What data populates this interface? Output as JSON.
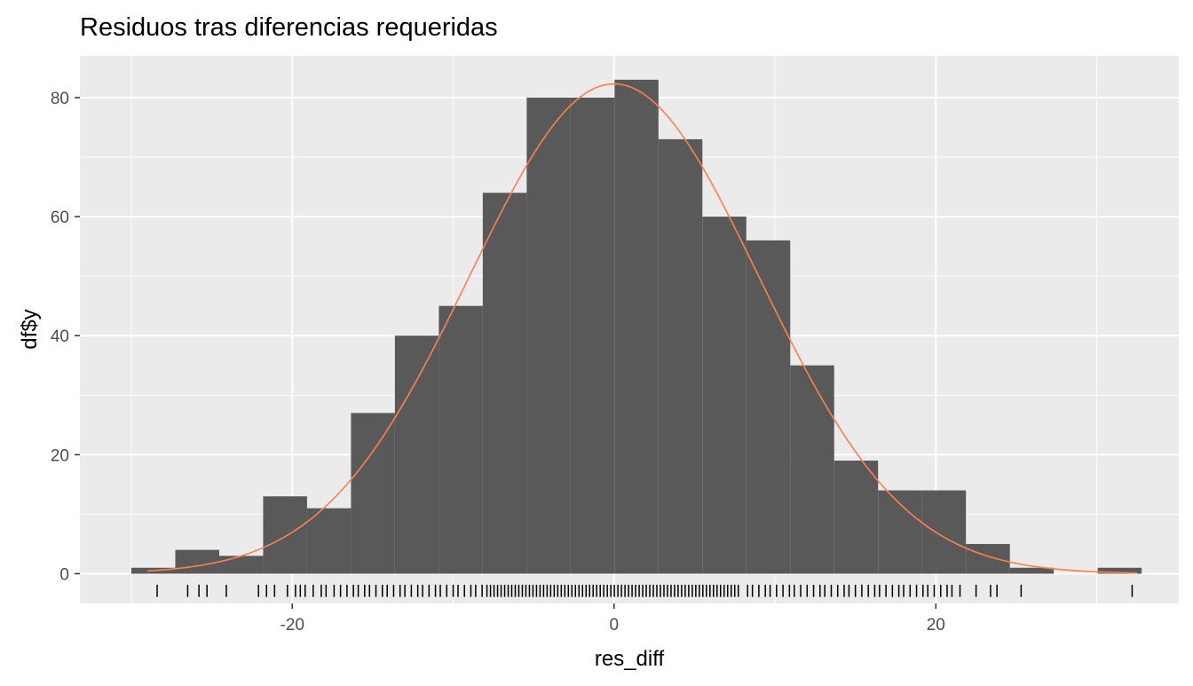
{
  "chart_data": {
    "type": "bar",
    "title": "Residuos tras diferencias requeridas",
    "xlabel": "res_diff",
    "ylabel": "df$y",
    "xlim": [
      -33.2,
      35.1
    ],
    "ylim": [
      -5.0,
      87.0
    ],
    "x_ticks": [
      -20,
      0,
      20
    ],
    "x_tick_labels": [
      "-20",
      "0",
      "20"
    ],
    "y_ticks": [
      0,
      20,
      40,
      60,
      80
    ],
    "y_tick_labels": [
      "0",
      "20",
      "40",
      "60",
      "80"
    ],
    "grid": true,
    "legend": "none",
    "bin_width": 2.73,
    "bins": [
      {
        "x_min": -30.0,
        "x_max": -27.27,
        "count": 1
      },
      {
        "x_min": -27.27,
        "x_max": -24.54,
        "count": 4
      },
      {
        "x_min": -24.54,
        "x_max": -21.81,
        "count": 3
      },
      {
        "x_min": -21.81,
        "x_max": -19.08,
        "count": 13
      },
      {
        "x_min": -19.08,
        "x_max": -16.35,
        "count": 11
      },
      {
        "x_min": -16.35,
        "x_max": -13.62,
        "count": 27
      },
      {
        "x_min": -13.62,
        "x_max": -10.89,
        "count": 40
      },
      {
        "x_min": -10.89,
        "x_max": -8.16,
        "count": 45
      },
      {
        "x_min": -8.16,
        "x_max": -5.43,
        "count": 64
      },
      {
        "x_min": -5.43,
        "x_max": -2.7,
        "count": 80
      },
      {
        "x_min": -2.7,
        "x_max": 0.03,
        "count": 80
      },
      {
        "x_min": 0.03,
        "x_max": 2.76,
        "count": 83
      },
      {
        "x_min": 2.76,
        "x_max": 5.49,
        "count": 73
      },
      {
        "x_min": 5.49,
        "x_max": 8.22,
        "count": 60
      },
      {
        "x_min": 8.22,
        "x_max": 10.95,
        "count": 56
      },
      {
        "x_min": 10.95,
        "x_max": 13.68,
        "count": 35
      },
      {
        "x_min": 13.68,
        "x_max": 16.41,
        "count": 19
      },
      {
        "x_min": 16.41,
        "x_max": 19.14,
        "count": 14
      },
      {
        "x_min": 19.14,
        "x_max": 21.87,
        "count": 14
      },
      {
        "x_min": 21.87,
        "x_max": 24.6,
        "count": 5
      },
      {
        "x_min": 24.6,
        "x_max": 27.33,
        "count": 1
      },
      {
        "x_min": 27.33,
        "x_max": 30.06,
        "count": 0
      },
      {
        "x_min": 30.06,
        "x_max": 32.79,
        "count": 1
      }
    ],
    "density_curve": {
      "mean": 0.0,
      "sd": 9.0,
      "peak": 82.3,
      "x_range": [
        -29.0,
        32.5
      ],
      "color": "#ff7f50"
    },
    "rug": {
      "color": "#000000",
      "sparse_values": [
        -28.4,
        -26.5,
        -25.8,
        -25.3,
        -24.1,
        -22.1,
        -21.6,
        -21.1,
        -20.3,
        -19.8,
        -19.5,
        -19.2,
        -18.7,
        -18.2,
        -17.9,
        -17.4,
        -17.0,
        -16.6,
        -16.2,
        -15.9,
        -15.5,
        -15.2,
        -14.8,
        -14.4,
        -14.1,
        -13.7,
        -13.3,
        -13.0,
        -12.6,
        -12.2,
        -11.9,
        -11.5,
        -11.1,
        -10.8,
        -10.4,
        -10.0,
        -9.7,
        -9.3,
        -8.9,
        -8.6,
        -8.2,
        8.3,
        8.6,
        9.0,
        9.4,
        9.7,
        10.1,
        10.5,
        10.9,
        11.2,
        11.6,
        12.0,
        12.4,
        12.8,
        13.1,
        13.5,
        13.9,
        14.3,
        14.6,
        15.0,
        15.4,
        15.8,
        16.2,
        16.5,
        16.9,
        17.3,
        17.7,
        18.0,
        18.4,
        18.8,
        19.2,
        19.5,
        19.9,
        20.3,
        20.7,
        21.0,
        21.5,
        22.5,
        23.4,
        23.8,
        25.3,
        32.2
      ],
      "dense_range": [
        -7.9,
        7.9
      ],
      "dense_step": 0.22
    },
    "colors": {
      "panel_background": "#ebebeb",
      "grid_major": "#ffffff",
      "bar_fill": "#595959"
    }
  }
}
